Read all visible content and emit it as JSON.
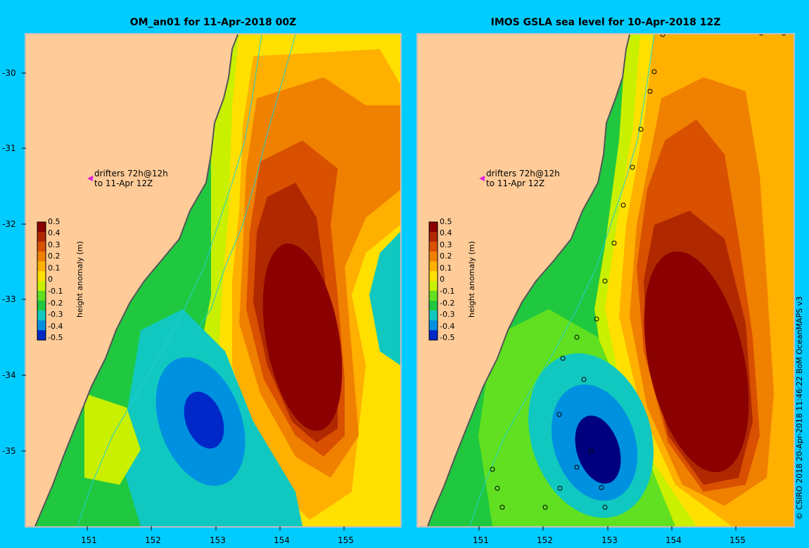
{
  "panels": [
    {
      "title": "OM_an01 for 11-Apr-2018 00Z",
      "drifter_note_line1": "drifters 72h@12h",
      "drifter_note_line2": "to 11-Apr 12Z",
      "colorbar_label": "height anomaly (m)"
    },
    {
      "title": "IMOS GSLA sea level  for 10-Apr-2018 12Z",
      "drifter_note_line1": "drifters 72h@12h",
      "drifter_note_line2": "to 11-Apr 12Z",
      "colorbar_label": "height anomaly (m)"
    }
  ],
  "axes": {
    "lat_ticks": [
      "-30",
      "-31",
      "-32",
      "-33",
      "-34",
      "-35"
    ],
    "lon_ticks": [
      "151",
      "152",
      "153",
      "154",
      "155"
    ]
  },
  "colorbar": {
    "ticks": [
      "0.5",
      "0.4",
      "0.3",
      "0.2",
      "0.1",
      "0",
      "-0.1",
      "-0.2",
      "-0.3",
      "-0.4",
      "-0.5"
    ],
    "range": [
      -0.5,
      0.5
    ],
    "colors": [
      "#00007f",
      "#0028c8",
      "#0090e0",
      "#10c8c0",
      "#20c840",
      "#60e020",
      "#c8f000",
      "#ffe000",
      "#ffb000",
      "#f08000",
      "#d85000",
      "#b02800",
      "#8b0000"
    ]
  },
  "credit": "© CSIRO 2018   20-Apr-2018 11:46:22 BoM OceanMAPS v3",
  "colors": {
    "background": "#00ccff",
    "land": "#ffcc99",
    "frame": "#c0c0c0"
  }
}
